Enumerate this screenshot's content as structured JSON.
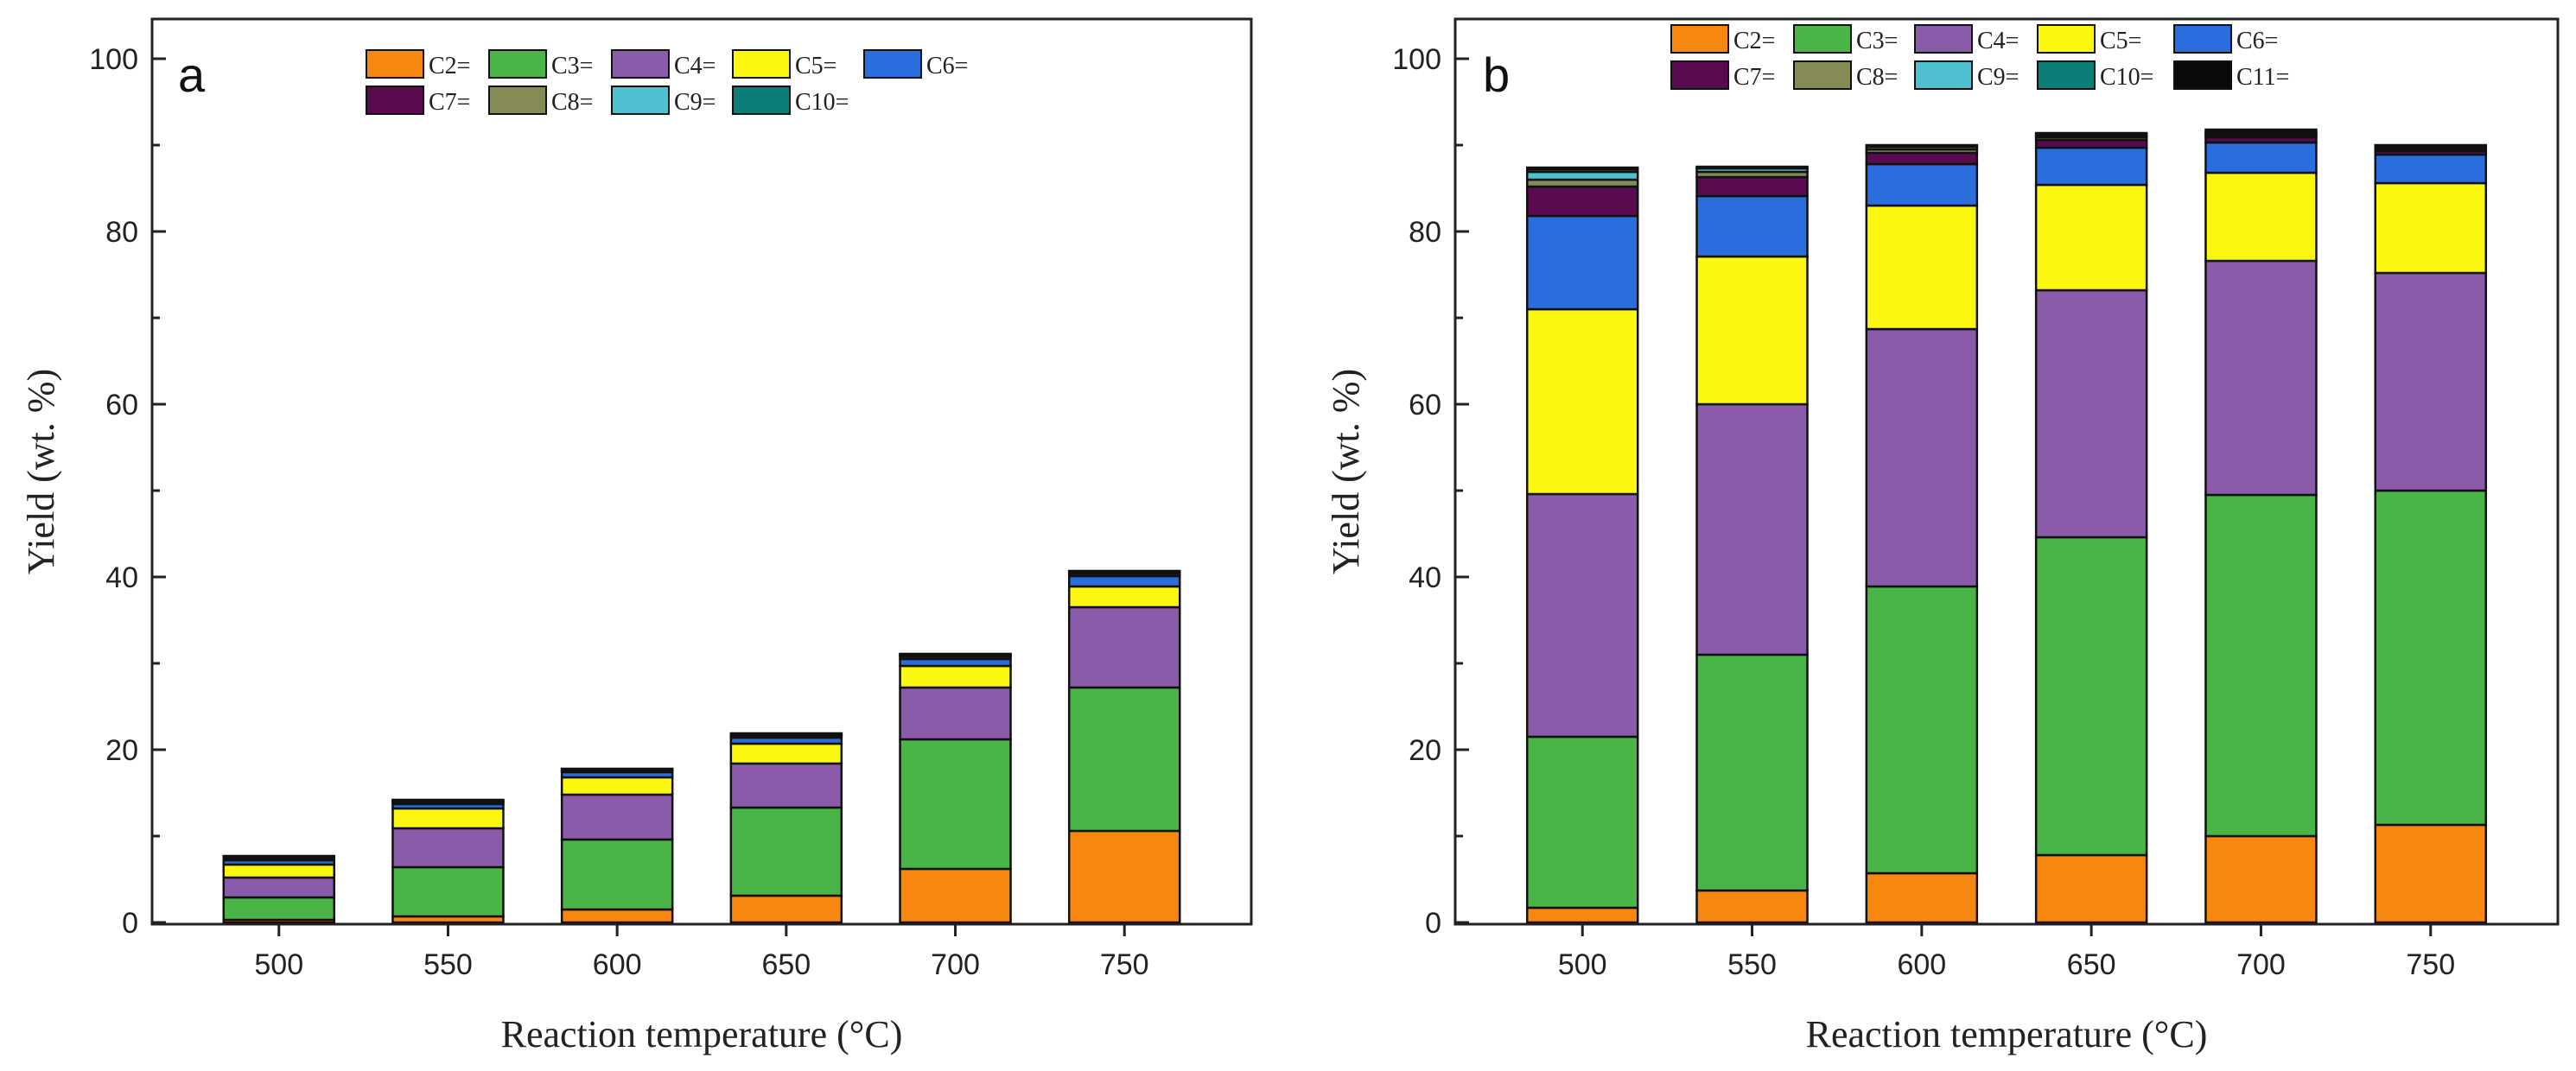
{
  "xlabel": "Reaction temperature (°C)",
  "ylabel": "Yield (wt. %)",
  "colors": {
    "C2=": "#f7870f",
    "C3=": "#48b546",
    "C4=": "#8a5ba8",
    "C5=": "#fbf70f",
    "C6=": "#2a6ddc",
    "C7=": "#5a0a4e",
    "C8=": "#868a55",
    "C9=": "#4ec0cf",
    "C10=": "#0c7e78",
    "C11=": "#0a0a0a"
  },
  "chart_data": [
    {
      "type": "bar",
      "stacked": true,
      "panel": "a",
      "categories": [
        "500",
        "550",
        "600",
        "650",
        "700",
        "750"
      ],
      "ylim": [
        0,
        100
      ],
      "yticks": [
        0,
        20,
        40,
        60,
        80,
        100
      ],
      "xlabel": "Reaction temperature (°C)",
      "ylabel": "Yield (wt. %)",
      "legend": [
        "C2=",
        "C3=",
        "C4=",
        "C5=",
        "C6=",
        "C7=",
        "C8=",
        "C9=",
        "C10="
      ],
      "series": [
        {
          "name": "C2=",
          "values": [
            0.3,
            0.7,
            1.5,
            3.1,
            6.2,
            10.6
          ]
        },
        {
          "name": "C3=",
          "values": [
            2.6,
            5.7,
            8.1,
            10.2,
            15.0,
            16.6
          ]
        },
        {
          "name": "C4=",
          "values": [
            2.3,
            4.5,
            5.2,
            5.1,
            6.0,
            9.3
          ]
        },
        {
          "name": "C5=",
          "values": [
            1.5,
            2.3,
            2.0,
            2.3,
            2.5,
            2.4
          ]
        },
        {
          "name": "C6=",
          "values": [
            0.5,
            0.5,
            0.6,
            0.7,
            0.8,
            1.2
          ]
        },
        {
          "name": "C7=",
          "values": [
            0.2,
            0.2,
            0.1,
            0.2,
            0.3,
            0.3
          ]
        },
        {
          "name": "C8=",
          "values": [
            0.1,
            0.1,
            0.1,
            0.1,
            0.1,
            0.1
          ]
        },
        {
          "name": "C9=",
          "values": [
            0.1,
            0.1,
            0.1,
            0.1,
            0.1,
            0.1
          ]
        },
        {
          "name": "C10=",
          "values": [
            0.1,
            0.1,
            0.1,
            0.1,
            0.1,
            0.1
          ]
        }
      ]
    },
    {
      "type": "bar",
      "stacked": true,
      "panel": "b",
      "categories": [
        "500",
        "550",
        "600",
        "650",
        "700",
        "750"
      ],
      "ylim": [
        0,
        100
      ],
      "yticks": [
        0,
        20,
        40,
        60,
        80,
        100
      ],
      "xlabel": "Reaction temperature (°C)",
      "ylabel": "Yield (wt. %)",
      "legend": [
        "C2=",
        "C3=",
        "C4=",
        "C5=",
        "C6=",
        "C7=",
        "C8=",
        "C9=",
        "C10=",
        "C11="
      ],
      "series": [
        {
          "name": "C2=",
          "values": [
            1.7,
            3.7,
            5.7,
            7.8,
            10.0,
            11.3
          ]
        },
        {
          "name": "C3=",
          "values": [
            19.8,
            27.3,
            33.2,
            36.8,
            39.5,
            38.7
          ]
        },
        {
          "name": "C4=",
          "values": [
            28.1,
            29.0,
            29.8,
            28.6,
            27.1,
            25.2
          ]
        },
        {
          "name": "C5=",
          "values": [
            21.4,
            17.1,
            14.3,
            12.2,
            10.2,
            10.4
          ]
        },
        {
          "name": "C6=",
          "values": [
            10.8,
            7.0,
            4.8,
            4.3,
            3.5,
            3.3
          ]
        },
        {
          "name": "C7=",
          "values": [
            3.4,
            2.2,
            1.3,
            0.9,
            0.6,
            0.4
          ]
        },
        {
          "name": "C8=",
          "values": [
            0.8,
            0.6,
            0.4,
            0.3,
            0.2,
            0.2
          ]
        },
        {
          "name": "C9=",
          "values": [
            0.9,
            0.4,
            0.3,
            0.2,
            0.2,
            0.2
          ]
        },
        {
          "name": "C10=",
          "values": [
            0.3,
            0.1,
            0.1,
            0.1,
            0.1,
            0.1
          ]
        },
        {
          "name": "C11=",
          "values": [
            0.2,
            0.1,
            0.1,
            0.2,
            0.4,
            0.2
          ]
        }
      ]
    }
  ]
}
